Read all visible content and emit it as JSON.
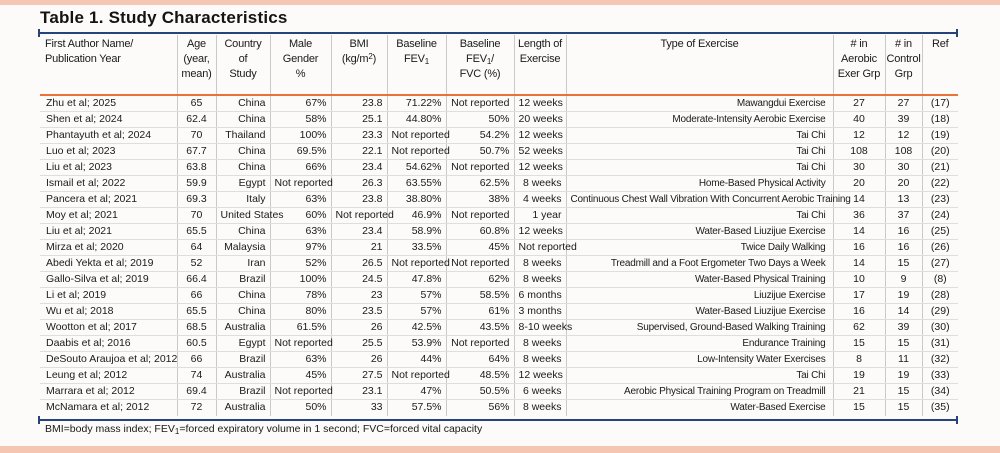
{
  "title": "Table 1. Study Characteristics",
  "colors": {
    "accent_orange": "#e8743a",
    "rule_navy": "#26437c",
    "band_salmon": "#f5c7b3"
  },
  "footnote": {
    "p1": "BMI=body mass index; FEV",
    "sub1": "1",
    "p2": "=forced expiratory volume in 1 second; FVC=forced vital capacity"
  },
  "table": {
    "headers": {
      "author": "First Author Name/\nPublication Year",
      "age": "Age\n(year,\nmean)",
      "country": "Country\nof\nStudy",
      "male_pct": "Male\nGender\n%",
      "bmi": {
        "l1": "BMI",
        "l2a": "(kg/m",
        "sup": "2",
        "l2b": ")"
      },
      "baseline_fev1": {
        "l1": "Baseline",
        "l2a": "FEV",
        "sub": "1"
      },
      "fev1_fvc_pct": {
        "l1": "Baseline",
        "l2a": "FEV",
        "sub": "1",
        "l2b": "/",
        "l3": "FVC (%)"
      },
      "length": "Length of\nExercise",
      "type": "Type of Exercise",
      "n_aerobic": "# in\nAerobic\nExer Grp",
      "n_control": "# in\nControl\nGrp",
      "ref": "Ref"
    },
    "rows": [
      {
        "author": "Zhu et al; 2025",
        "age": "65",
        "country": "China",
        "male_pct": "67%",
        "bmi": "23.8",
        "baseline_fev1": "71.22%",
        "fev1_fvc_pct": "Not reported",
        "length": "12 weeks",
        "type": "Mawangdui Exercise",
        "n_aerobic": "27",
        "n_control": "27",
        "ref": "(17)"
      },
      {
        "author": "Shen et al; 2024",
        "age": "62.4",
        "country": "China",
        "male_pct": "58%",
        "bmi": "25.1",
        "baseline_fev1": "44.80%",
        "fev1_fvc_pct": "50%",
        "length": "20 weeks",
        "type": "Moderate-Intensity Aerobic Exercise",
        "n_aerobic": "40",
        "n_control": "39",
        "ref": "(18)"
      },
      {
        "author": "Phantayuth et al; 2024",
        "age": "70",
        "country": "Thailand",
        "male_pct": "100%",
        "bmi": "23.3",
        "baseline_fev1": "Not reported",
        "fev1_fvc_pct": "54.2%",
        "length": "12 weeks",
        "type": "Tai Chi",
        "n_aerobic": "12",
        "n_control": "12",
        "ref": "(19)"
      },
      {
        "author": "Luo et al; 2023",
        "age": "67.7",
        "country": "China",
        "male_pct": "69.5%",
        "bmi": "22.1",
        "baseline_fev1": "Not reported",
        "fev1_fvc_pct": "50.7%",
        "length": "52 weeks",
        "type": "Tai Chi",
        "n_aerobic": "108",
        "n_control": "108",
        "ref": "(20)"
      },
      {
        "author": "Liu et al; 2023",
        "age": "63.8",
        "country": "China",
        "male_pct": "66%",
        "bmi": "23.4",
        "baseline_fev1": "54.62%",
        "fev1_fvc_pct": "Not reported",
        "length": "12 weeks",
        "type": "Tai Chi",
        "n_aerobic": "30",
        "n_control": "30",
        "ref": "(21)"
      },
      {
        "author": "Ismail et al; 2022",
        "age": "59.9",
        "country": "Egypt",
        "male_pct": "Not reported",
        "bmi": "26.3",
        "baseline_fev1": "63.55%",
        "fev1_fvc_pct": "62.5%",
        "length": "8 weeks",
        "type": "Home-Based Physical Activity",
        "n_aerobic": "20",
        "n_control": "20",
        "ref": "(22)"
      },
      {
        "author": "Pancera et al; 2021",
        "age": "69.3",
        "country": "Italy",
        "male_pct": "63%",
        "bmi": "23.8",
        "baseline_fev1": "38.80%",
        "fev1_fvc_pct": "38%",
        "length": "4 weeks",
        "type": "Continuous Chest Wall Vibration With Concurrent Aerobic Training",
        "n_aerobic": "14",
        "n_control": "13",
        "ref": "(23)"
      },
      {
        "author": "Moy et al; 2021",
        "age": "70",
        "country": "United States",
        "male_pct": "60%",
        "bmi": "Not reported",
        "baseline_fev1": "46.9%",
        "fev1_fvc_pct": "Not reported",
        "length": "1 year",
        "type": "Tai Chi",
        "n_aerobic": "36",
        "n_control": "37",
        "ref": "(24)"
      },
      {
        "author": "Liu et al; 2021",
        "age": "65.5",
        "country": "China",
        "male_pct": "63%",
        "bmi": "23.4",
        "baseline_fev1": "58.9%",
        "fev1_fvc_pct": "60.8%",
        "length": "12 weeks",
        "type": "Water-Based Liuzijue Exercise",
        "n_aerobic": "14",
        "n_control": "16",
        "ref": "(25)"
      },
      {
        "author": "Mirza et al; 2020",
        "age": "64",
        "country": "Malaysia",
        "male_pct": "97%",
        "bmi": "21",
        "baseline_fev1": "33.5%",
        "fev1_fvc_pct": "45%",
        "length": "Not reported",
        "type": "Twice Daily Walking",
        "n_aerobic": "16",
        "n_control": "16",
        "ref": "(26)"
      },
      {
        "author": "Abedi Yekta et al; 2019",
        "age": "52",
        "country": "Iran",
        "male_pct": "52%",
        "bmi": "26.5",
        "baseline_fev1": "Not reported",
        "fev1_fvc_pct": "Not reported",
        "length": "8 weeks",
        "type": "Treadmill and a Foot Ergometer Two Days a Week",
        "n_aerobic": "14",
        "n_control": "15",
        "ref": "(27)"
      },
      {
        "author": "Gallo-Silva et al; 2019",
        "age": "66.4",
        "country": "Brazil",
        "male_pct": "100%",
        "bmi": "24.5",
        "baseline_fev1": "47.8%",
        "fev1_fvc_pct": "62%",
        "length": "8 weeks",
        "type": "Water-Based Physical Training",
        "n_aerobic": "10",
        "n_control": "9",
        "ref": "(8)"
      },
      {
        "author": "Li et al; 2019",
        "age": "66",
        "country": "China",
        "male_pct": "78%",
        "bmi": "23",
        "baseline_fev1": "57%",
        "fev1_fvc_pct": "58.5%",
        "length": "6 months",
        "type": "Liuzijue Exercise",
        "n_aerobic": "17",
        "n_control": "19",
        "ref": "(28)"
      },
      {
        "author": "Wu et al; 2018",
        "age": "65.5",
        "country": "China",
        "male_pct": "80%",
        "bmi": "23.5",
        "baseline_fev1": "57%",
        "fev1_fvc_pct": "61%",
        "length": "3 months",
        "type": "Water-Based Liuzijue Exercise",
        "n_aerobic": "16",
        "n_control": "14",
        "ref": "(29)"
      },
      {
        "author": "Wootton et al; 2017",
        "age": "68.5",
        "country": "Australia",
        "male_pct": "61.5%",
        "bmi": "26",
        "baseline_fev1": "42.5%",
        "fev1_fvc_pct": "43.5%",
        "length": "8-10 weeks",
        "type": "Supervised, Ground-Based Walking Training",
        "n_aerobic": "62",
        "n_control": "39",
        "ref": "(30)"
      },
      {
        "author": "Daabis et al; 2016",
        "age": "60.5",
        "country": "Egypt",
        "male_pct": "Not reported",
        "bmi": "25.5",
        "baseline_fev1": "53.9%",
        "fev1_fvc_pct": "Not reported",
        "length": "8 weeks",
        "type": "Endurance Training",
        "n_aerobic": "15",
        "n_control": "15",
        "ref": "(31)"
      },
      {
        "author": "DeSouto Araujoa et al; 2012",
        "age": "66",
        "country": "Brazil",
        "male_pct": "63%",
        "bmi": "26",
        "baseline_fev1": "44%",
        "fev1_fvc_pct": "64%",
        "length": "8 weeks",
        "type": "Low-Intensity Water Exercises",
        "n_aerobic": "8",
        "n_control": "11",
        "ref": "(32)"
      },
      {
        "author": "Leung et al; 2012",
        "age": "74",
        "country": "Australia",
        "male_pct": "45%",
        "bmi": "27.5",
        "baseline_fev1": "Not reported",
        "fev1_fvc_pct": "48.5%",
        "length": "12 weeks",
        "type": "Tai Chi",
        "n_aerobic": "19",
        "n_control": "19",
        "ref": "(33)"
      },
      {
        "author": "Marrara et al; 2012",
        "age": "69.4",
        "country": "Brazil",
        "male_pct": "Not reported",
        "bmi": "23.1",
        "baseline_fev1": "47%",
        "fev1_fvc_pct": "50.5%",
        "length": "6 weeks",
        "type": "Aerobic Physical Training Program on Treadmill",
        "n_aerobic": "21",
        "n_control": "15",
        "ref": "(34)"
      },
      {
        "author": "McNamara et al; 2012",
        "age": "72",
        "country": "Australia",
        "male_pct": "50%",
        "bmi": "33",
        "baseline_fev1": "57.5%",
        "fev1_fvc_pct": "56%",
        "length": "8 weeks",
        "type": "Water-Based Exercise",
        "n_aerobic": "15",
        "n_control": "15",
        "ref": "(35)"
      }
    ]
  }
}
